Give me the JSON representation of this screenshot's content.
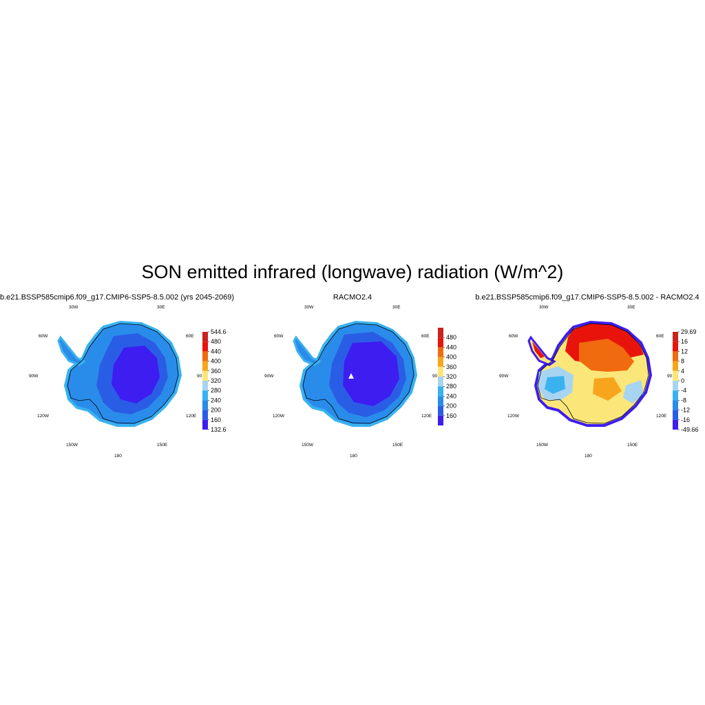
{
  "title": "SON emitted infrared (longwave) radiation (W/m^2)",
  "panels": [
    {
      "title": "b.e21.BSSP585cmip6.f09_g17.CMIP6-SSP5-8.5.002 (yrs 2045-2069)",
      "colorbar_labels": [
        "544.6",
        "480",
        "440",
        "400",
        "360",
        "320",
        "280",
        "240",
        "200",
        "160",
        "132.6"
      ],
      "colorbar_colors": [
        "#c8231d",
        "#e8140c",
        "#f06a10",
        "#f8a51e",
        "#fbe67a",
        "#a7d4f0",
        "#39b2ef",
        "#2a8cea",
        "#2a5de6",
        "#3d1df0"
      ]
    },
    {
      "title": "RACMO2.4",
      "colorbar_labels": [
        "480",
        "440",
        "400",
        "360",
        "320",
        "280",
        "240",
        "200",
        "160"
      ],
      "colorbar_colors": [
        "#c8231d",
        "#e8140c",
        "#f06a10",
        "#f8a51e",
        "#fbe67a",
        "#a7d4f0",
        "#39b2ef",
        "#2a8cea",
        "#2a5de6",
        "#3d1df0"
      ]
    },
    {
      "title": "b.e21.BSSP585cmip6.f09_g17.CMIP6-SSP5-8.5.002 - RACMO2.4",
      "colorbar_labels": [
        "29.69",
        "16",
        "12",
        "8",
        "4",
        "0",
        "-4",
        "-8",
        "-12",
        "-16",
        "-49.66"
      ],
      "colorbar_colors": [
        "#c8231d",
        "#e8140c",
        "#f06a10",
        "#f8a51e",
        "#fbe67a",
        "#a7d4f0",
        "#39b2ef",
        "#2a8cea",
        "#2a5de6",
        "#3d1df0"
      ]
    }
  ],
  "map_labels": {
    "w30": "30W",
    "e30": "30E",
    "w60": "60W",
    "e60": "60E",
    "w90": "90W",
    "e90": "90",
    "w120": "120W",
    "e120": "120E",
    "w150": "150W",
    "e150": "150E",
    "s180": "180"
  }
}
